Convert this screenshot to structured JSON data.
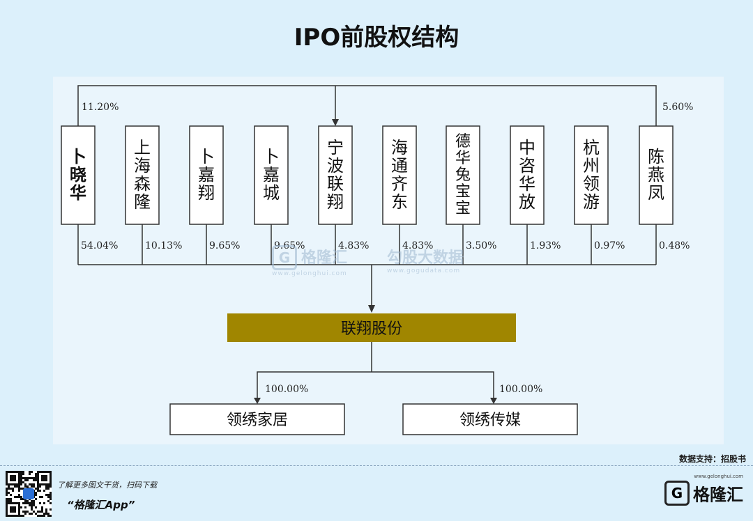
{
  "title": "IPO前股权结构",
  "top_percent_left": "11.20%",
  "top_percent_right": "5.60%",
  "shareholders": [
    {
      "name": "卜晓华",
      "percent": "54.04%"
    },
    {
      "name": "上海森隆",
      "percent": "10.13%"
    },
    {
      "name": "卜嘉翔",
      "percent": "9.65%"
    },
    {
      "name": "卜嘉城",
      "percent": "9.65%"
    },
    {
      "name": "宁波联翔",
      "percent": "4.83%"
    },
    {
      "name": "海通齐东",
      "percent": "4.83%"
    },
    {
      "name": "德华兔宝宝",
      "percent": "3.50%"
    },
    {
      "name": "中咨华放",
      "percent": "1.93%"
    },
    {
      "name": "杭州领游",
      "percent": "0.97%"
    },
    {
      "name": "陈燕凤",
      "percent": "0.48%"
    }
  ],
  "company": "联翔股份",
  "subsidiaries": [
    {
      "name": "领绣家居",
      "percent": "100.00%"
    },
    {
      "name": "领绣传媒",
      "percent": "100.00%"
    }
  ],
  "colors": {
    "company_fill": "#a08600",
    "background": "#dcf0fb",
    "panel": "#eaf5fc"
  },
  "watermark": {
    "left": "格隆汇",
    "left_url": "www.gelonghui.com",
    "right": "勾股大数据",
    "right_url": "www.gogudata.com"
  },
  "data_source": "数据支持：招股书",
  "footer": {
    "tagline": "了解更多图文干货，扫码下载",
    "app_name": "“格隆汇App”",
    "brand": "格隆汇",
    "brand_url": "www.gelonghui.com",
    "logo_letter": "G"
  }
}
